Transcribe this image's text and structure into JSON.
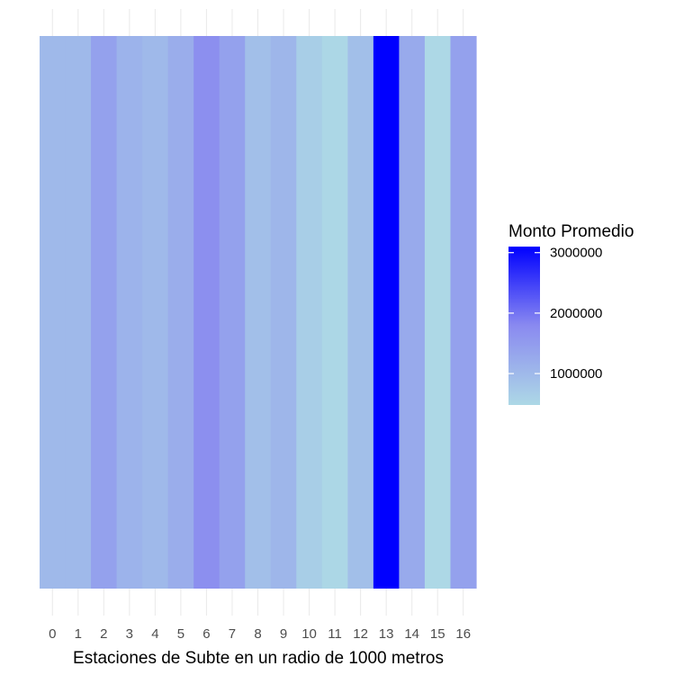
{
  "chart_data": {
    "type": "heatmap",
    "categories": [
      "0",
      "1",
      "2",
      "3",
      "4",
      "5",
      "6",
      "7",
      "8",
      "9",
      "10",
      "11",
      "12",
      "13",
      "14",
      "15",
      "16"
    ],
    "values": [
      1000000,
      1000000,
      1400000,
      1100000,
      1000000,
      1200000,
      1700000,
      1400000,
      900000,
      1050000,
      650000,
      500000,
      900000,
      3100000,
      1250000,
      480000,
      1400000
    ],
    "xlabel": "Estaciones de Subte en un radio de 1000 metros",
    "ylabel": "",
    "legend": {
      "title": "Monto Promedio",
      "ticks": [
        1000000,
        2000000,
        3000000
      ],
      "tick_labels": [
        "1000000",
        "2000000",
        "3000000"
      ],
      "range": [
        480000,
        3100000
      ],
      "color_low": "#add8e6",
      "color_high": "#0000ff",
      "position": "right"
    },
    "grid": true,
    "grid_color": "#ebebeb"
  }
}
